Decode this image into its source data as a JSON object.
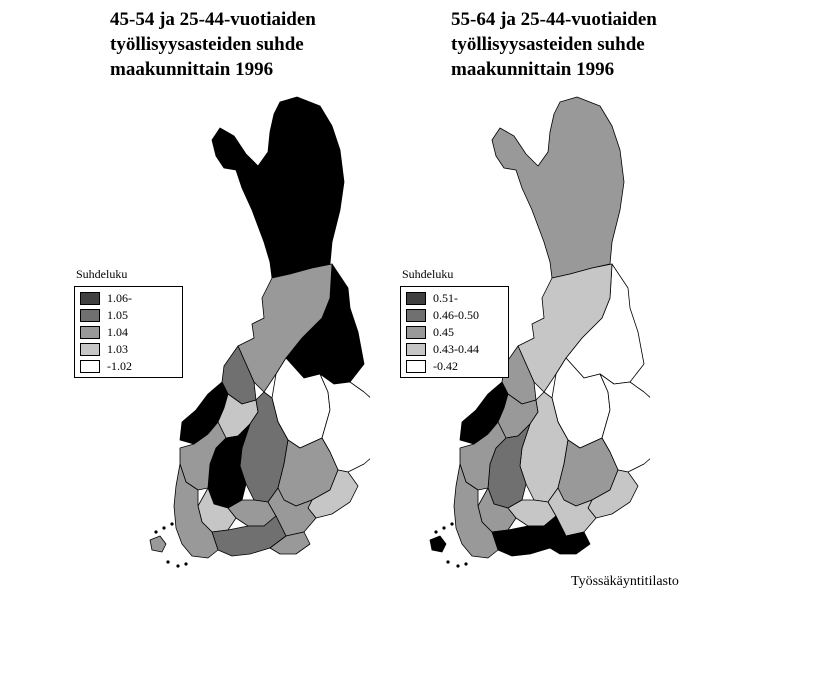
{
  "colors": {
    "c1": "#000000",
    "c2": "#707070",
    "c3": "#999999",
    "c4": "#c6c6c6",
    "c5": "#ffffff",
    "legend_c1": "#404040"
  },
  "maps": [
    {
      "title_lines": [
        "45-54 ja 25-44-vuotiaiden",
        "työllisyysasteiden suhde",
        "maakunnittain 1996"
      ],
      "legend_title": "Suhdeluku",
      "legend": [
        "1.06-",
        "1.05",
        "1.04",
        "1.03",
        "-1.02"
      ],
      "region_classes": {
        "lapland": 1,
        "kainuu": 1,
        "n_ostrobothnia": 3,
        "c_ostrobothnia": 2,
        "ostrobothnia": 1,
        "s_ostrobothnia": 4,
        "n_savo": 5,
        "n_karelia": 5,
        "c_finland": 2,
        "pirkanmaa": 1,
        "satakunta": 3,
        "s_savo": 3,
        "kanta_hame": 4,
        "paijat_hame": 3,
        "s_karelia": 4,
        "kymenlaakso": 3,
        "uusimaa": 2,
        "ita_uusimaa": 3,
        "varsinais_suomi": 3,
        "ahvenanmaa": 3
      }
    },
    {
      "title_lines": [
        "55-64 ja 25-44-vuotiaiden",
        "työllisyysasteiden suhde",
        "maakunnittain 1996"
      ],
      "legend_title": "Suhdeluku",
      "legend": [
        "0.51-",
        "0.46-0.50",
        "0.45",
        "0.43-0.44",
        "-0.42"
      ],
      "region_classes": {
        "lapland": 3,
        "kainuu": 5,
        "n_ostrobothnia": 4,
        "c_ostrobothnia": 3,
        "ostrobothnia": 1,
        "s_ostrobothnia": 3,
        "n_savo": 5,
        "n_karelia": 5,
        "c_finland": 4,
        "pirkanmaa": 2,
        "satakunta": 3,
        "s_savo": 3,
        "kanta_hame": 3,
        "paijat_hame": 4,
        "s_karelia": 4,
        "kymenlaakso": 4,
        "uusimaa": 1,
        "ita_uusimaa": 1,
        "varsinais_suomi": 3,
        "ahvenanmaa": 1
      }
    }
  ],
  "source": "Työssäkäyntitilasto"
}
